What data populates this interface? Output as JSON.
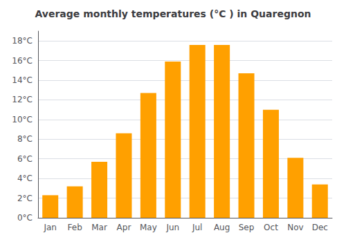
{
  "chart_data": {
    "type": "bar",
    "title": "Average monthly temperatures (°C ) in Quaregnon",
    "categories": [
      "Jan",
      "Feb",
      "Mar",
      "Apr",
      "May",
      "Jun",
      "Jul",
      "Aug",
      "Sep",
      "Oct",
      "Nov",
      "Dec"
    ],
    "values": [
      2.3,
      3.2,
      5.7,
      8.6,
      12.7,
      15.9,
      17.6,
      17.6,
      14.7,
      11.0,
      6.1,
      3.4
    ],
    "color": "#FFA000",
    "ylim": [
      0,
      19
    ],
    "yticks": [
      {
        "value": 0,
        "label": "0°C"
      },
      {
        "value": 2,
        "label": "2°C"
      },
      {
        "value": 4,
        "label": "4°C"
      },
      {
        "value": 6,
        "label": "6°C"
      },
      {
        "value": 8,
        "label": "8°C"
      },
      {
        "value": 10,
        "label": "10°C"
      },
      {
        "value": 12,
        "label": "12°C"
      },
      {
        "value": 14,
        "label": "14°C"
      },
      {
        "value": 16,
        "label": "16°C"
      },
      {
        "value": 18,
        "label": "18°C"
      }
    ],
    "grid": true
  }
}
